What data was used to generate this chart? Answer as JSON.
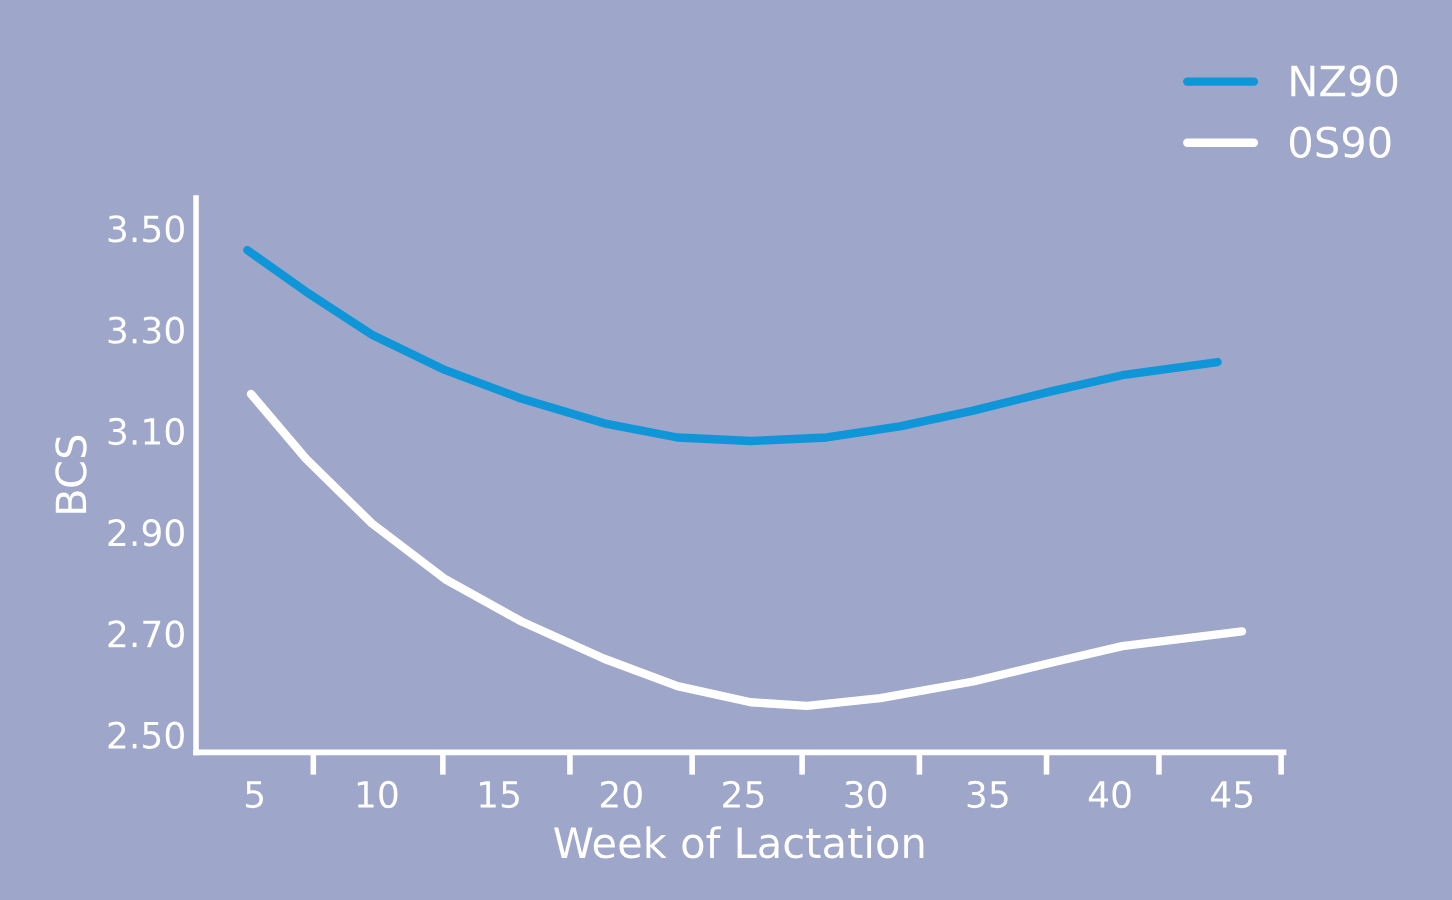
{
  "chart_data": {
    "type": "line",
    "xlabel": "Week of Lactation",
    "ylabel": "BCS",
    "xlim": [
      2.6,
      47.1
    ],
    "ylim": [
      2.465,
      3.56
    ],
    "xticks": [
      5,
      10,
      15,
      20,
      25,
      30,
      35,
      40,
      45,
      {
        "value": 7.4,
        "label": null
      },
      {
        "value": 12.7,
        "label": null
      },
      {
        "value": 17.9,
        "label": null
      },
      {
        "value": 22.9,
        "label": null
      },
      {
        "value": 27.4,
        "label": null
      },
      {
        "value": 32.2,
        "label": null
      },
      {
        "value": 37.4,
        "label": null
      },
      {
        "value": 42.0,
        "label": null
      },
      {
        "value": 47.0,
        "label": null
      }
    ],
    "yticks": [
      {
        "value": 2.5,
        "label": "2.50"
      },
      {
        "value": 2.7,
        "label": "2.70"
      },
      {
        "value": 2.9,
        "label": "2.90"
      },
      {
        "value": 3.1,
        "label": "3.10"
      },
      {
        "value": 3.3,
        "label": "3.30"
      },
      {
        "value": 3.5,
        "label": "3.50"
      }
    ],
    "grid": false,
    "legend": "top right",
    "line_style": "solid",
    "marker": "none",
    "series": [
      {
        "name": "NZ90",
        "color": "#0e96d8",
        "x": [
          4.7,
          7.1,
          9.8,
          12.8,
          15.9,
          19.3,
          22.3,
          25.3,
          28.4,
          31.4,
          34.4,
          37.5,
          40.5,
          44.4
        ],
        "values": [
          3.457,
          3.375,
          3.29,
          3.22,
          3.164,
          3.115,
          3.087,
          3.08,
          3.087,
          3.109,
          3.14,
          3.177,
          3.21,
          3.236
        ]
      },
      {
        "name": "0S90",
        "color": "#ffffff",
        "x": [
          4.85,
          7.1,
          9.8,
          12.8,
          15.9,
          19.3,
          22.3,
          25.3,
          27.6,
          30.6,
          34.4,
          37.5,
          40.5,
          45.4
        ],
        "values": [
          3.173,
          3.045,
          2.917,
          2.807,
          2.724,
          2.65,
          2.596,
          2.564,
          2.557,
          2.572,
          2.605,
          2.641,
          2.675,
          2.704
        ]
      }
    ]
  }
}
